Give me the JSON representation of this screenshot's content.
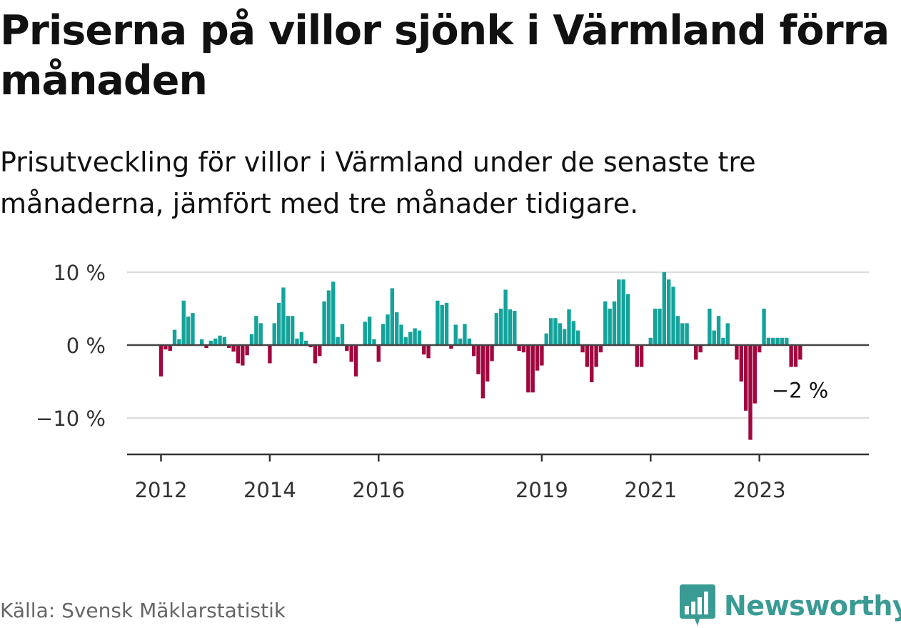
{
  "title": "Priserna på villor sjönk i Värmland förra månaden",
  "subtitle": "Prisutveckling för villor i Värmland under de senaste tre månaderna, jämfört med tre månader tidigare.",
  "source": "Källa: Svensk Mäklarstatistik",
  "brand": {
    "name": "Newsworthy",
    "icon": "newsworthy-logo-icon",
    "color": "#3a9a94"
  },
  "colors": {
    "positive": "#14a39b",
    "negative": "#a1063e",
    "zero_line": "#444444",
    "grid": "#dddddd"
  },
  "chart_data": {
    "type": "bar",
    "ylim": [
      -15,
      10
    ],
    "y_ticks": [
      {
        "value": 10,
        "label": "10 %"
      },
      {
        "value": 0,
        "label": "0 %"
      },
      {
        "value": -10,
        "label": "−10 %"
      }
    ],
    "x_ticks": [
      {
        "value": "2012",
        "label": "2012"
      },
      {
        "value": "2014",
        "label": "2014"
      },
      {
        "value": "2016",
        "label": "2016"
      },
      {
        "value": "2019",
        "label": "2019"
      },
      {
        "value": "2021",
        "label": "2021"
      },
      {
        "value": "2023",
        "label": "2023"
      }
    ],
    "grid": true,
    "last_label": "−2 %",
    "series": [
      {
        "values": [
          -4.3,
          -0.6,
          -0.8,
          2.1,
          0.8,
          6.1,
          3.9,
          4.4,
          0.0,
          0.8,
          -0.4,
          0.6,
          0.9,
          1.3,
          1.1,
          -0.4,
          -0.9,
          -2.5,
          -2.8,
          -1.4,
          1.5,
          4.0,
          3.0,
          0.0,
          -2.5,
          3.0,
          5.8,
          7.9,
          4.0,
          4.0,
          0.9,
          1.8,
          0.6,
          -0.3,
          -2.5,
          -1.5,
          6.0,
          7.5,
          8.7,
          1.1,
          2.9,
          -0.8,
          -2.3,
          -4.3,
          0.0,
          3.2,
          3.9,
          0.8,
          -2.3,
          2.9,
          4.2,
          7.8,
          4.5,
          2.8,
          1.1,
          1.8,
          2.3,
          2.0,
          -1.3,
          -1.8,
          0.0,
          6.1,
          5.5,
          5.8,
          -0.5,
          2.8,
          0.9,
          2.9,
          0.9,
          -1.5,
          -4.0,
          -7.3,
          -5.0,
          -2.2,
          4.4,
          5.0,
          7.6,
          4.9,
          4.7,
          -0.8,
          -1.0,
          -6.5,
          -6.5,
          -3.5,
          -2.8,
          1.6,
          3.7,
          3.7,
          3.0,
          2.2,
          4.9,
          3.3,
          2.0,
          -1.0,
          -3.0,
          -5.1,
          -3.0,
          -1.0,
          6.0,
          5.0,
          6.0,
          9.0,
          9.0,
          7.0,
          0.0,
          -3.0,
          -3.0,
          0.0,
          1.0,
          5.0,
          5.0,
          10.0,
          9.0,
          8.0,
          4.0,
          3.0,
          3.0,
          0.0,
          -2.0,
          -1.0,
          0.0,
          5.0,
          2.0,
          4.0,
          1.0,
          3.0,
          0.0,
          -2.0,
          -5.0,
          -9.0,
          -13.0,
          -8.0,
          -1.0,
          5.0,
          1.0,
          1.0,
          1.0,
          1.0,
          1.0,
          -3.0,
          -3.0,
          -2.0
        ]
      }
    ]
  }
}
